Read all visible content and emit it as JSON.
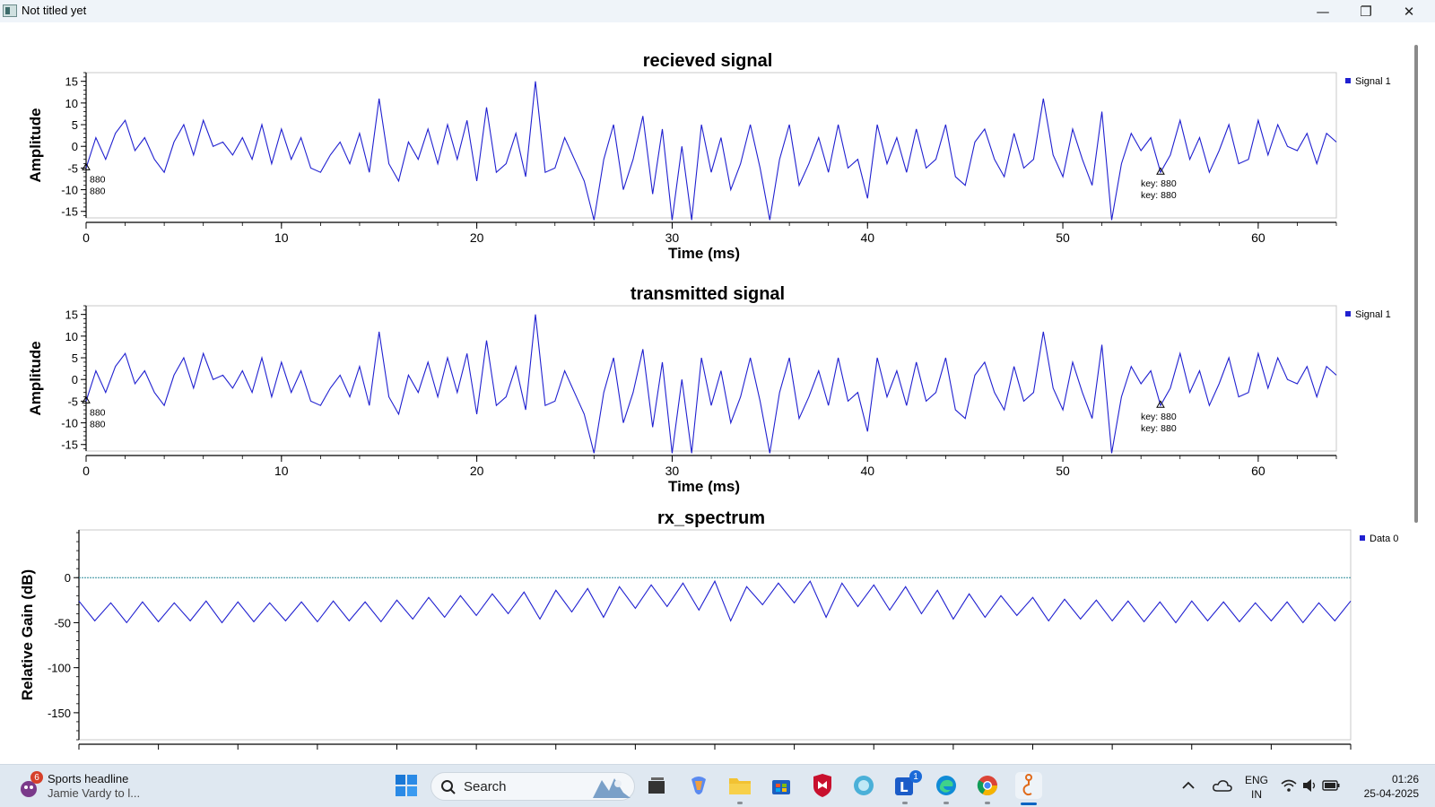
{
  "window": {
    "title": "Not titled yet",
    "controls": {
      "minimize": "—",
      "maximize": "❐",
      "close": "✕"
    }
  },
  "chart_data": [
    {
      "type": "line",
      "title": "recieved signal",
      "xlabel": "Time (ms)",
      "ylabel": "Amplitude",
      "xlim": [
        0,
        64
      ],
      "ylim": [
        -16.5,
        17
      ],
      "xticks": [
        0,
        10,
        20,
        30,
        40,
        50,
        60
      ],
      "yticks": [
        15,
        10,
        5,
        0,
        -5,
        -10,
        -15
      ],
      "ytick_labels": [
        "15",
        "10",
        "5",
        "0",
        "-5",
        "-10",
        "-15"
      ],
      "grid": false,
      "legend": "top-right",
      "series": [
        {
          "name": "Signal 1",
          "color": "#2020d0",
          "x": [
            0,
            0.5,
            1,
            1.5,
            2,
            2.5,
            3,
            3.5,
            4,
            4.5,
            5,
            5.5,
            6,
            6.5,
            7,
            7.5,
            8,
            8.5,
            9,
            9.5,
            10,
            10.5,
            11,
            11.5,
            12,
            12.5,
            13,
            13.5,
            14,
            14.5,
            15,
            15.5,
            16,
            16.5,
            17,
            17.5,
            18,
            18.5,
            19,
            19.5,
            20,
            20.5,
            21,
            21.5,
            22,
            22.5,
            23,
            23.5,
            24,
            24.5,
            25,
            25.5,
            26,
            26.5,
            27,
            27.5,
            28,
            28.5,
            29,
            29.5,
            30,
            30.5,
            31,
            31.5,
            32,
            32.5,
            33,
            33.5,
            34,
            34.5,
            35,
            35.5,
            36,
            36.5,
            37,
            37.5,
            38,
            38.5,
            39,
            39.5,
            40,
            40.5,
            41,
            41.5,
            42,
            42.5,
            43,
            43.5,
            44,
            44.5,
            45,
            45.5,
            46,
            46.5,
            47,
            47.5,
            48,
            48.5,
            49,
            49.5,
            50,
            50.5,
            51,
            51.5,
            52,
            52.5,
            53,
            53.5,
            54,
            54.5,
            55,
            55.5,
            56,
            56.5,
            57,
            57.5,
            58,
            58.5,
            59,
            59.5,
            60,
            60.5,
            61,
            61.5,
            62,
            62.5,
            63,
            63.5,
            64
          ],
          "y": [
            -5,
            2,
            -3,
            3,
            6,
            -1,
            2,
            -3,
            -6,
            1,
            5,
            -2,
            6,
            0,
            1,
            -2,
            2,
            -3,
            5,
            -4,
            4,
            -3,
            2,
            -5,
            -6,
            -2,
            1,
            -4,
            3,
            -6,
            11,
            -4,
            -8,
            1,
            -3,
            4,
            -4,
            5,
            -3,
            6,
            -8,
            9,
            -6,
            -4,
            3,
            -7,
            15,
            -6,
            -5,
            2,
            -3,
            -8,
            -17,
            -3,
            5,
            -10,
            -3,
            7,
            -11,
            4,
            -17,
            0,
            -17,
            5,
            -6,
            2,
            -10,
            -4,
            5,
            -5,
            -17,
            -3,
            5,
            -9,
            -4,
            2,
            -6,
            5,
            -5,
            -3,
            -12,
            5,
            -4,
            2,
            -6,
            4,
            -5,
            -3,
            5,
            -7,
            -9,
            1,
            4,
            -3,
            -7,
            3,
            -5,
            -3,
            11,
            -2,
            -7,
            4,
            -3,
            -9,
            8,
            -17,
            -4,
            3,
            -1,
            2,
            -6,
            -2,
            6,
            -3,
            2,
            -6,
            -1,
            5,
            -4,
            -3,
            6,
            -2,
            5,
            0,
            -1,
            3,
            -4,
            3,
            1
          ]
        }
      ],
      "annotations": [
        {
          "text": "880",
          "x": 0,
          "y": -5
        },
        {
          "text": "880",
          "x": 0,
          "y": -5
        },
        {
          "text": "key: 880",
          "x": 55,
          "y": -6
        },
        {
          "text": "key: 880",
          "x": 55,
          "y": -6
        }
      ]
    },
    {
      "type": "line",
      "title": "transmitted signal",
      "xlabel": "Time (ms)",
      "ylabel": "Amplitude",
      "xlim": [
        0,
        64
      ],
      "ylim": [
        -16.5,
        17
      ],
      "xticks": [
        0,
        10,
        20,
        30,
        40,
        50,
        60
      ],
      "yticks": [
        15,
        10,
        5,
        0,
        -5,
        -10,
        -15
      ],
      "ytick_labels": [
        "15",
        "10",
        "5",
        "0",
        "-5",
        "-10",
        "-15"
      ],
      "grid": false,
      "legend": "top-right",
      "series": [
        {
          "name": "Signal 1",
          "color": "#2020d0",
          "x": [
            0,
            0.5,
            1,
            1.5,
            2,
            2.5,
            3,
            3.5,
            4,
            4.5,
            5,
            5.5,
            6,
            6.5,
            7,
            7.5,
            8,
            8.5,
            9,
            9.5,
            10,
            10.5,
            11,
            11.5,
            12,
            12.5,
            13,
            13.5,
            14,
            14.5,
            15,
            15.5,
            16,
            16.5,
            17,
            17.5,
            18,
            18.5,
            19,
            19.5,
            20,
            20.5,
            21,
            21.5,
            22,
            22.5,
            23,
            23.5,
            24,
            24.5,
            25,
            25.5,
            26,
            26.5,
            27,
            27.5,
            28,
            28.5,
            29,
            29.5,
            30,
            30.5,
            31,
            31.5,
            32,
            32.5,
            33,
            33.5,
            34,
            34.5,
            35,
            35.5,
            36,
            36.5,
            37,
            37.5,
            38,
            38.5,
            39,
            39.5,
            40,
            40.5,
            41,
            41.5,
            42,
            42.5,
            43,
            43.5,
            44,
            44.5,
            45,
            45.5,
            46,
            46.5,
            47,
            47.5,
            48,
            48.5,
            49,
            49.5,
            50,
            50.5,
            51,
            51.5,
            52,
            52.5,
            53,
            53.5,
            54,
            54.5,
            55,
            55.5,
            56,
            56.5,
            57,
            57.5,
            58,
            58.5,
            59,
            59.5,
            60,
            60.5,
            61,
            61.5,
            62,
            62.5,
            63,
            63.5,
            64
          ],
          "y": [
            -5,
            2,
            -3,
            3,
            6,
            -1,
            2,
            -3,
            -6,
            1,
            5,
            -2,
            6,
            0,
            1,
            -2,
            2,
            -3,
            5,
            -4,
            4,
            -3,
            2,
            -5,
            -6,
            -2,
            1,
            -4,
            3,
            -6,
            11,
            -4,
            -8,
            1,
            -3,
            4,
            -4,
            5,
            -3,
            6,
            -8,
            9,
            -6,
            -4,
            3,
            -7,
            15,
            -6,
            -5,
            2,
            -3,
            -8,
            -17,
            -3,
            5,
            -10,
            -3,
            7,
            -11,
            4,
            -17,
            0,
            -17,
            5,
            -6,
            2,
            -10,
            -4,
            5,
            -5,
            -17,
            -3,
            5,
            -9,
            -4,
            2,
            -6,
            5,
            -5,
            -3,
            -12,
            5,
            -4,
            2,
            -6,
            4,
            -5,
            -3,
            5,
            -7,
            -9,
            1,
            4,
            -3,
            -7,
            3,
            -5,
            -3,
            11,
            -2,
            -7,
            4,
            -3,
            -9,
            8,
            -17,
            -4,
            3,
            -1,
            2,
            -6,
            -2,
            6,
            -3,
            2,
            -6,
            -1,
            5,
            -4,
            -3,
            6,
            -2,
            5,
            0,
            -1,
            3,
            -4,
            3,
            1
          ]
        }
      ],
      "annotations": [
        {
          "text": "880",
          "x": 0,
          "y": -5
        },
        {
          "text": "880",
          "x": 0,
          "y": -5
        },
        {
          "text": "key: 880",
          "x": 55,
          "y": -6
        },
        {
          "text": "key: 880",
          "x": 55,
          "y": -6
        }
      ]
    },
    {
      "type": "line",
      "title": "rx_spectrum",
      "xlabel": "",
      "ylabel": "Relative Gain (dB)",
      "xlim": [
        0,
        160
      ],
      "ylim": [
        -180,
        53
      ],
      "yticks": [
        0,
        -50,
        -100,
        -150
      ],
      "ytick_labels": [
        "0",
        "-50",
        "-100",
        "-150"
      ],
      "reference_line": 0,
      "grid": false,
      "legend": "top-right",
      "series": [
        {
          "name": "Data 0",
          "color": "#2020d0",
          "x": [
            0,
            2,
            4,
            6,
            8,
            10,
            12,
            14,
            16,
            18,
            20,
            22,
            24,
            26,
            28,
            30,
            32,
            34,
            36,
            38,
            40,
            42,
            44,
            46,
            48,
            50,
            52,
            54,
            56,
            58,
            60,
            62,
            64,
            66,
            68,
            70,
            72,
            74,
            76,
            78,
            80,
            82,
            84,
            86,
            88,
            90,
            92,
            94,
            96,
            98,
            100,
            102,
            104,
            106,
            108,
            110,
            112,
            114,
            116,
            118,
            120,
            122,
            124,
            126,
            128,
            130,
            132,
            134,
            136,
            138,
            140,
            142,
            144,
            146,
            148,
            150,
            152,
            154,
            156,
            158,
            160
          ],
          "y": [
            -26,
            -48,
            -28,
            -50,
            -27,
            -49,
            -28,
            -48,
            -26,
            -50,
            -27,
            -49,
            -28,
            -48,
            -27,
            -49,
            -26,
            -48,
            -27,
            -49,
            -25,
            -46,
            -22,
            -44,
            -20,
            -42,
            -18,
            -40,
            -16,
            -46,
            -14,
            -38,
            -12,
            -44,
            -10,
            -34,
            -8,
            -32,
            -6,
            -36,
            -4,
            -48,
            -10,
            -30,
            -6,
            -28,
            -4,
            -44,
            -6,
            -32,
            -8,
            -36,
            -10,
            -40,
            -14,
            -46,
            -18,
            -44,
            -20,
            -42,
            -22,
            -48,
            -24,
            -46,
            -25,
            -48,
            -26,
            -49,
            -27,
            -50,
            -26,
            -48,
            -27,
            -49,
            -28,
            -48,
            -27,
            -50,
            -28,
            -48,
            -26
          ]
        }
      ]
    }
  ],
  "taskbar": {
    "weather": {
      "headline": "Sports headline",
      "subtext": "Jamie Vardy to l...",
      "badge": "6"
    },
    "search": {
      "placeholder": "Search"
    },
    "apps": [
      "start-icon",
      "taskview-icon",
      "copilot-icon",
      "file-explorer-icon",
      "store-icon",
      "mcafee-icon",
      "app-icon",
      "teams-icon",
      "edge-icon",
      "chrome-icon",
      "python-app-icon"
    ],
    "teams_badge": "1",
    "tray": {
      "lang_top": "ENG",
      "lang_bottom": "IN",
      "time": "01:26",
      "date": "25-04-2025"
    }
  }
}
